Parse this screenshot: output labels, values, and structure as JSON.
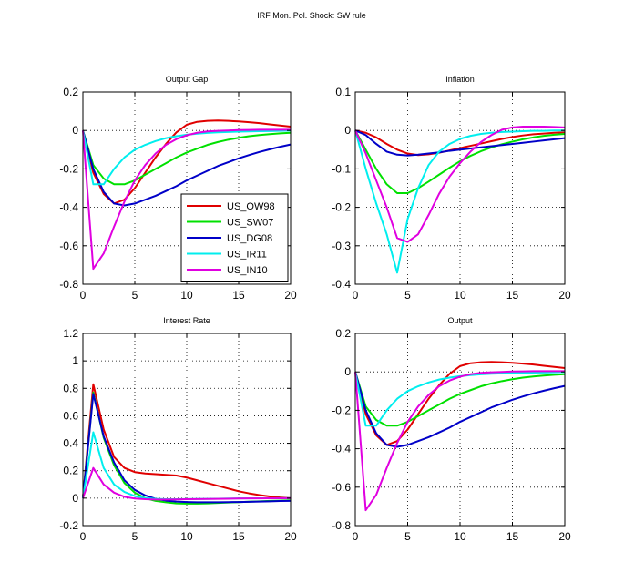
{
  "figure": {
    "title": "IRF Mon. Pol. Shock: SW rule"
  },
  "series_styles": [
    {
      "name": "US_OW98",
      "color": "#e00000"
    },
    {
      "name": "US_SW07",
      "color": "#00e000"
    },
    {
      "name": "US_DG08",
      "color": "#0000c8"
    },
    {
      "name": "US_IR11",
      "color": "#00eeee"
    },
    {
      "name": "US_IN10",
      "color": "#e000e0"
    }
  ],
  "chart_data": [
    {
      "type": "line",
      "title": "Output Gap",
      "xlim": [
        0,
        20
      ],
      "ylim": [
        -0.8,
        0.2
      ],
      "xticks": [
        0,
        5,
        10,
        15,
        20
      ],
      "xtick_labels": [
        "0",
        "5",
        "10",
        "15",
        "20"
      ],
      "yticks": [
        -0.8,
        -0.6,
        -0.4,
        -0.2,
        0,
        0.2
      ],
      "ytick_labels": [
        "-0.8",
        "-0.6",
        "-0.4",
        "-0.2",
        "0",
        "0.2"
      ],
      "grid": true,
      "legend": {
        "placement": "bottom-right",
        "entries": [
          "US_OW98",
          "US_SW07",
          "US_DG08",
          "US_IR11",
          "US_IN10"
        ]
      },
      "x": [
        0,
        1,
        2,
        3,
        4,
        5,
        6,
        7,
        8,
        9,
        10,
        11,
        12,
        13,
        14,
        15,
        16,
        17,
        18,
        19,
        20
      ],
      "series": [
        {
          "name": "US_OW98",
          "values": [
            0,
            -0.22,
            -0.33,
            -0.38,
            -0.36,
            -0.3,
            -0.22,
            -0.14,
            -0.07,
            -0.01,
            0.03,
            0.045,
            0.05,
            0.052,
            0.05,
            0.047,
            0.043,
            0.038,
            0.032,
            0.026,
            0.02
          ]
        },
        {
          "name": "US_SW07",
          "values": [
            0,
            -0.18,
            -0.25,
            -0.28,
            -0.28,
            -0.26,
            -0.23,
            -0.2,
            -0.17,
            -0.14,
            -0.115,
            -0.095,
            -0.075,
            -0.06,
            -0.048,
            -0.038,
            -0.03,
            -0.024,
            -0.019,
            -0.015,
            -0.012
          ]
        },
        {
          "name": "US_DG08",
          "values": [
            0,
            -0.2,
            -0.32,
            -0.38,
            -0.39,
            -0.38,
            -0.36,
            -0.34,
            -0.315,
            -0.29,
            -0.26,
            -0.235,
            -0.21,
            -0.185,
            -0.165,
            -0.145,
            -0.128,
            -0.112,
            -0.098,
            -0.085,
            -0.073
          ]
        },
        {
          "name": "US_IR11",
          "values": [
            0,
            -0.28,
            -0.28,
            -0.2,
            -0.14,
            -0.1,
            -0.075,
            -0.055,
            -0.04,
            -0.03,
            -0.022,
            -0.017,
            -0.013,
            -0.01,
            -0.008,
            -0.006,
            -0.005,
            -0.004,
            -0.003,
            -0.002,
            -0.001
          ]
        },
        {
          "name": "US_IN10",
          "values": [
            0,
            -0.72,
            -0.64,
            -0.5,
            -0.37,
            -0.26,
            -0.18,
            -0.12,
            -0.075,
            -0.045,
            -0.025,
            -0.012,
            -0.005,
            -0.002,
            0,
            0.002,
            0.003,
            0.004,
            0.004,
            0.004,
            0.004
          ]
        }
      ]
    },
    {
      "type": "line",
      "title": "Inflation",
      "xlim": [
        0,
        20
      ],
      "ylim": [
        -0.4,
        0.1
      ],
      "xticks": [
        0,
        5,
        10,
        15,
        20
      ],
      "xtick_labels": [
        "0",
        "5",
        "10",
        "15",
        "20"
      ],
      "yticks": [
        -0.4,
        -0.3,
        -0.2,
        -0.1,
        0,
        0.1
      ],
      "ytick_labels": [
        "-0.4",
        "-0.3",
        "-0.2",
        "-0.1",
        "0",
        "0.1"
      ],
      "grid": true,
      "x": [
        0,
        1,
        2,
        3,
        4,
        5,
        6,
        7,
        8,
        9,
        10,
        11,
        12,
        13,
        14,
        15,
        16,
        17,
        18,
        19,
        20
      ],
      "series": [
        {
          "name": "US_OW98",
          "values": [
            0,
            -0.006,
            -0.018,
            -0.035,
            -0.05,
            -0.06,
            -0.064,
            -0.062,
            -0.058,
            -0.052,
            -0.046,
            -0.04,
            -0.034,
            -0.028,
            -0.022,
            -0.017,
            -0.013,
            -0.01,
            -0.008,
            -0.006,
            -0.005
          ]
        },
        {
          "name": "US_SW07",
          "values": [
            0,
            -0.05,
            -0.1,
            -0.14,
            -0.163,
            -0.163,
            -0.15,
            -0.133,
            -0.115,
            -0.097,
            -0.08,
            -0.066,
            -0.054,
            -0.044,
            -0.036,
            -0.029,
            -0.023,
            -0.018,
            -0.014,
            -0.011,
            -0.009
          ]
        },
        {
          "name": "US_DG08",
          "values": [
            0,
            -0.012,
            -0.035,
            -0.055,
            -0.063,
            -0.065,
            -0.063,
            -0.06,
            -0.057,
            -0.053,
            -0.05,
            -0.047,
            -0.044,
            -0.041,
            -0.038,
            -0.035,
            -0.032,
            -0.029,
            -0.026,
            -0.023,
            -0.02
          ]
        },
        {
          "name": "US_IR11",
          "values": [
            0,
            -0.1,
            -0.19,
            -0.27,
            -0.37,
            -0.23,
            -0.15,
            -0.09,
            -0.055,
            -0.035,
            -0.022,
            -0.014,
            -0.009,
            -0.006,
            -0.004,
            -0.003,
            -0.002,
            -0.001,
            -0.001,
            0,
            0
          ]
        },
        {
          "name": "US_IN10",
          "values": [
            0,
            -0.06,
            -0.13,
            -0.2,
            -0.28,
            -0.29,
            -0.27,
            -0.22,
            -0.165,
            -0.12,
            -0.085,
            -0.055,
            -0.03,
            -0.012,
            0.002,
            0.008,
            0.01,
            0.01,
            0.01,
            0.009,
            0.008
          ]
        }
      ]
    },
    {
      "type": "line",
      "title": "Interest Rate",
      "xlim": [
        0,
        20
      ],
      "ylim": [
        -0.2,
        1.2
      ],
      "xticks": [
        0,
        5,
        10,
        15,
        20
      ],
      "xtick_labels": [
        "0",
        "5",
        "10",
        "15",
        "20"
      ],
      "yticks": [
        -0.2,
        0,
        0.2,
        0.4,
        0.6,
        0.8,
        1,
        1.2
      ],
      "ytick_labels": [
        "-0.2",
        "0",
        "0.2",
        "0.4",
        "0.6",
        "0.8",
        "1",
        "1.2"
      ],
      "grid": true,
      "x": [
        0,
        1,
        2,
        3,
        4,
        5,
        6,
        7,
        8,
        9,
        10,
        11,
        12,
        13,
        14,
        15,
        16,
        17,
        18,
        19,
        20
      ],
      "series": [
        {
          "name": "US_OW98",
          "values": [
            0,
            0.83,
            0.5,
            0.3,
            0.22,
            0.19,
            0.18,
            0.175,
            0.17,
            0.165,
            0.15,
            0.13,
            0.11,
            0.09,
            0.07,
            0.05,
            0.035,
            0.022,
            0.012,
            0.005,
            0
          ]
        },
        {
          "name": "US_SW07",
          "values": [
            0,
            0.77,
            0.44,
            0.24,
            0.11,
            0.04,
            0,
            -0.02,
            -0.03,
            -0.038,
            -0.04,
            -0.04,
            -0.038,
            -0.035,
            -0.032,
            -0.029,
            -0.026,
            -0.023,
            -0.02,
            -0.018,
            -0.016
          ]
        },
        {
          "name": "US_DG08",
          "values": [
            0,
            0.76,
            0.45,
            0.26,
            0.13,
            0.06,
            0.02,
            -0.005,
            -0.018,
            -0.025,
            -0.028,
            -0.03,
            -0.03,
            -0.03,
            -0.029,
            -0.028,
            -0.027,
            -0.025,
            -0.023,
            -0.021,
            -0.02
          ]
        },
        {
          "name": "US_IR11",
          "values": [
            0,
            0.48,
            0.22,
            0.1,
            0.045,
            0.015,
            0,
            -0.005,
            -0.008,
            -0.008,
            -0.007,
            -0.006,
            -0.005,
            -0.004,
            -0.003,
            -0.002,
            -0.002,
            -0.001,
            -0.001,
            0,
            0
          ]
        },
        {
          "name": "US_IN10",
          "values": [
            0,
            0.22,
            0.1,
            0.04,
            0.01,
            -0.003,
            -0.008,
            -0.01,
            -0.01,
            -0.009,
            -0.008,
            -0.007,
            -0.006,
            -0.005,
            -0.004,
            -0.003,
            -0.002,
            -0.002,
            -0.001,
            -0.001,
            0
          ]
        }
      ]
    },
    {
      "type": "line",
      "title": "Output",
      "xlim": [
        0,
        20
      ],
      "ylim": [
        -0.8,
        0.2
      ],
      "xticks": [
        0,
        5,
        10,
        15,
        20
      ],
      "xtick_labels": [
        "0",
        "5",
        "10",
        "15",
        "20"
      ],
      "yticks": [
        -0.8,
        -0.6,
        -0.4,
        -0.2,
        0,
        0.2
      ],
      "ytick_labels": [
        "-0.8",
        "-0.6",
        "-0.4",
        "-0.2",
        "0",
        "0.2"
      ],
      "grid": true,
      "x": [
        0,
        1,
        2,
        3,
        4,
        5,
        6,
        7,
        8,
        9,
        10,
        11,
        12,
        13,
        14,
        15,
        16,
        17,
        18,
        19,
        20
      ],
      "series": [
        {
          "name": "US_OW98",
          "values": [
            0,
            -0.22,
            -0.33,
            -0.38,
            -0.36,
            -0.3,
            -0.22,
            -0.14,
            -0.07,
            -0.01,
            0.03,
            0.045,
            0.05,
            0.052,
            0.05,
            0.047,
            0.043,
            0.038,
            0.032,
            0.026,
            0.02
          ]
        },
        {
          "name": "US_SW07",
          "values": [
            0,
            -0.18,
            -0.25,
            -0.28,
            -0.28,
            -0.26,
            -0.23,
            -0.2,
            -0.17,
            -0.14,
            -0.115,
            -0.095,
            -0.075,
            -0.06,
            -0.048,
            -0.038,
            -0.03,
            -0.024,
            -0.019,
            -0.015,
            -0.012
          ]
        },
        {
          "name": "US_DG08",
          "values": [
            0,
            -0.2,
            -0.32,
            -0.38,
            -0.39,
            -0.38,
            -0.36,
            -0.34,
            -0.315,
            -0.29,
            -0.26,
            -0.235,
            -0.21,
            -0.185,
            -0.165,
            -0.145,
            -0.128,
            -0.112,
            -0.098,
            -0.085,
            -0.073
          ]
        },
        {
          "name": "US_IR11",
          "values": [
            0,
            -0.28,
            -0.28,
            -0.2,
            -0.14,
            -0.1,
            -0.075,
            -0.055,
            -0.04,
            -0.03,
            -0.022,
            -0.017,
            -0.013,
            -0.01,
            -0.008,
            -0.006,
            -0.005,
            -0.004,
            -0.003,
            -0.002,
            -0.001
          ]
        },
        {
          "name": "US_IN10",
          "values": [
            0,
            -0.72,
            -0.64,
            -0.5,
            -0.37,
            -0.26,
            -0.18,
            -0.12,
            -0.075,
            -0.045,
            -0.025,
            -0.012,
            -0.005,
            -0.002,
            0,
            0.002,
            0.003,
            0.004,
            0.004,
            0.004,
            0.004
          ]
        }
      ]
    }
  ]
}
